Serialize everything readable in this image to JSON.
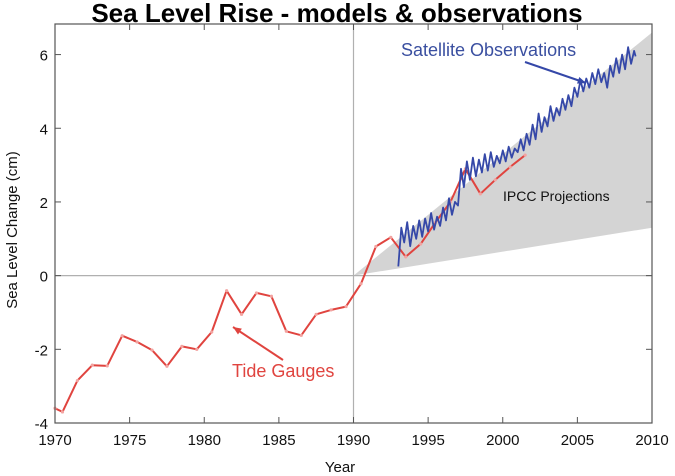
{
  "chart_data": {
    "type": "line",
    "title": "Sea Level Rise - models & observations",
    "xlabel": "Year",
    "ylabel": "Sea Level Change (cm)",
    "xlim": [
      1970,
      2010
    ],
    "ylim": [
      -4,
      7
    ],
    "xticks": [
      1970,
      1975,
      1980,
      1985,
      1990,
      1995,
      2000,
      2005,
      2010
    ],
    "yticks": [
      -4,
      -2,
      0,
      2,
      4,
      6
    ],
    "reference_lines": {
      "y_zero": 0,
      "x_vertical": 1990
    },
    "grid": false,
    "colors": {
      "tide_gauges": "#e0443f",
      "satellite": "#3548a8",
      "projection_band": "#d4d4d4",
      "reference_line": "#b0b0b0"
    },
    "series": [
      {
        "name": "Tide Gauges",
        "x": [
          1970.0,
          1970.5,
          1971.5,
          1972.5,
          1973.5,
          1974.5,
          1975.5,
          1976.5,
          1977.5,
          1978.5,
          1979.5,
          1980.5,
          1981.5,
          1982.5,
          1983.5,
          1984.5,
          1985.5,
          1986.5,
          1987.5,
          1988.5,
          1989.5,
          1990.5,
          1991.5,
          1992.5,
          1993.5,
          1994.5,
          1995.5,
          1996.5,
          1997.5,
          1998.5,
          1999.5,
          2000.5,
          2001.5
        ],
        "y": [
          -3.6,
          -3.7,
          -2.85,
          -2.43,
          -2.45,
          -1.63,
          -1.8,
          -2.02,
          -2.46,
          -1.92,
          -2.0,
          -1.53,
          -0.41,
          -1.05,
          -0.47,
          -0.56,
          -1.51,
          -1.62,
          -1.05,
          -0.93,
          -0.84,
          -0.22,
          0.79,
          1.04,
          0.51,
          0.86,
          1.45,
          2.0,
          2.9,
          2.22,
          2.6,
          2.95,
          3.27
        ]
      },
      {
        "name": "Satellite Observations",
        "x": [
          1993.0,
          1993.2,
          1993.4,
          1993.6,
          1993.8,
          1994.0,
          1994.2,
          1994.4,
          1994.6,
          1994.8,
          1995.0,
          1995.2,
          1995.4,
          1995.6,
          1995.8,
          1996.0,
          1996.2,
          1996.4,
          1996.6,
          1996.8,
          1997.0,
          1997.2,
          1997.4,
          1997.6,
          1997.8,
          1998.0,
          1998.2,
          1998.4,
          1998.6,
          1998.8,
          1999.0,
          1999.2,
          1999.4,
          1999.6,
          1999.8,
          2000.0,
          2000.2,
          2000.4,
          2000.6,
          2000.8,
          2001.0,
          2001.2,
          2001.4,
          2001.6,
          2001.8,
          2002.0,
          2002.2,
          2002.4,
          2002.6,
          2002.8,
          2003.0,
          2003.2,
          2003.4,
          2003.6,
          2003.8,
          2004.0,
          2004.2,
          2004.4,
          2004.6,
          2004.8,
          2005.0,
          2005.2,
          2005.4,
          2005.6,
          2005.8,
          2006.0,
          2006.2,
          2006.4,
          2006.6,
          2006.8,
          2007.0,
          2007.2,
          2007.4,
          2007.6,
          2007.8,
          2008.0,
          2008.2,
          2008.4,
          2008.6,
          2008.8,
          2008.9
        ],
        "y": [
          0.25,
          1.3,
          0.9,
          1.45,
          0.8,
          1.35,
          1.0,
          1.5,
          1.05,
          1.55,
          1.2,
          1.7,
          1.25,
          1.6,
          1.35,
          1.85,
          1.5,
          2.1,
          1.65,
          2.0,
          1.9,
          2.9,
          2.4,
          3.1,
          2.6,
          3.2,
          2.7,
          3.15,
          2.8,
          3.3,
          2.85,
          3.35,
          2.95,
          3.25,
          3.05,
          3.4,
          3.1,
          3.5,
          3.2,
          3.45,
          3.35,
          3.7,
          3.4,
          3.85,
          3.55,
          4.1,
          3.7,
          4.4,
          3.9,
          4.3,
          4.05,
          4.6,
          4.2,
          4.55,
          4.35,
          4.8,
          4.5,
          4.9,
          4.6,
          5.1,
          4.85,
          5.3,
          5.0,
          5.35,
          5.1,
          5.5,
          5.2,
          5.6,
          5.25,
          5.5,
          5.1,
          5.7,
          5.4,
          5.9,
          5.5,
          6.0,
          5.6,
          6.2,
          5.75,
          6.1,
          5.95
        ]
      }
    ],
    "projection_band": {
      "name": "IPCC Projections",
      "x": [
        1990,
        2010
      ],
      "lower": [
        0,
        1.3
      ],
      "upper": [
        0,
        6.6
      ]
    },
    "annotations": [
      {
        "text": "Satellite Observations",
        "color": "blue",
        "points_to": "Satellite Observations"
      },
      {
        "text": "Tide Gauges",
        "color": "red",
        "points_to": "Tide Gauges"
      },
      {
        "text": "IPCC Projections",
        "color": "black",
        "points_to": "IPCC Projections"
      }
    ]
  }
}
